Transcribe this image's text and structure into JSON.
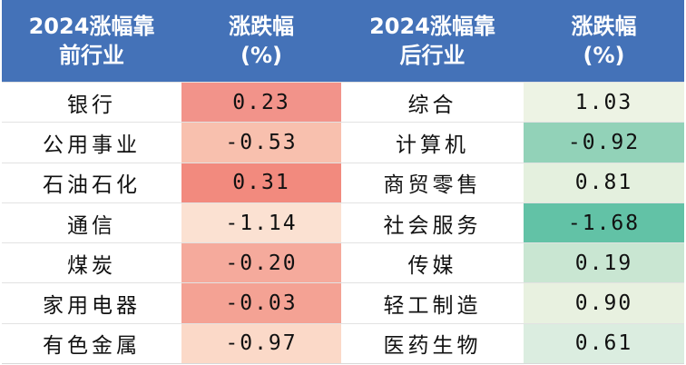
{
  "headers": [
    "2024涨幅靠\n前行业",
    "涨跌幅\n(%)",
    "2024涨幅靠\n后行业",
    "涨跌幅\n(%)"
  ],
  "rows": [
    {
      "top_name": "银行",
      "top_value": "0.23",
      "top_color": "#f2938a",
      "bottom_name": "综合",
      "bottom_value": "1.03",
      "bottom_color": "#edf3e4"
    },
    {
      "top_name": "公用事业",
      "top_value": "-0.53",
      "top_color": "#f8c0ae",
      "bottom_name": "计算机",
      "bottom_value": "-0.92",
      "bottom_color": "#92d2b8"
    },
    {
      "top_name": "石油石化",
      "top_value": "0.31",
      "top_color": "#f28a7e",
      "bottom_name": "商贸零售",
      "bottom_value": "0.81",
      "bottom_color": "#e4f0de"
    },
    {
      "top_name": "通信",
      "top_value": "-1.14",
      "top_color": "#fbe1d2",
      "bottom_name": "社会服务",
      "bottom_value": "-1.68",
      "bottom_color": "#62c2a6"
    },
    {
      "top_name": "煤炭",
      "top_value": "-0.20",
      "top_color": "#f5aa9c",
      "bottom_name": "传媒",
      "bottom_value": "0.19",
      "bottom_color": "#c9e6d2"
    },
    {
      "top_name": "家用电器",
      "top_value": "-0.03",
      "top_color": "#f4a294",
      "bottom_name": "轻工制造",
      "bottom_value": "0.90",
      "bottom_color": "#e8f1e0"
    },
    {
      "top_name": "有色金属",
      "top_value": "-0.97",
      "top_color": "#fbd9c8",
      "bottom_name": "医药生物",
      "bottom_value": "0.61",
      "bottom_color": "#dbede0"
    }
  ]
}
